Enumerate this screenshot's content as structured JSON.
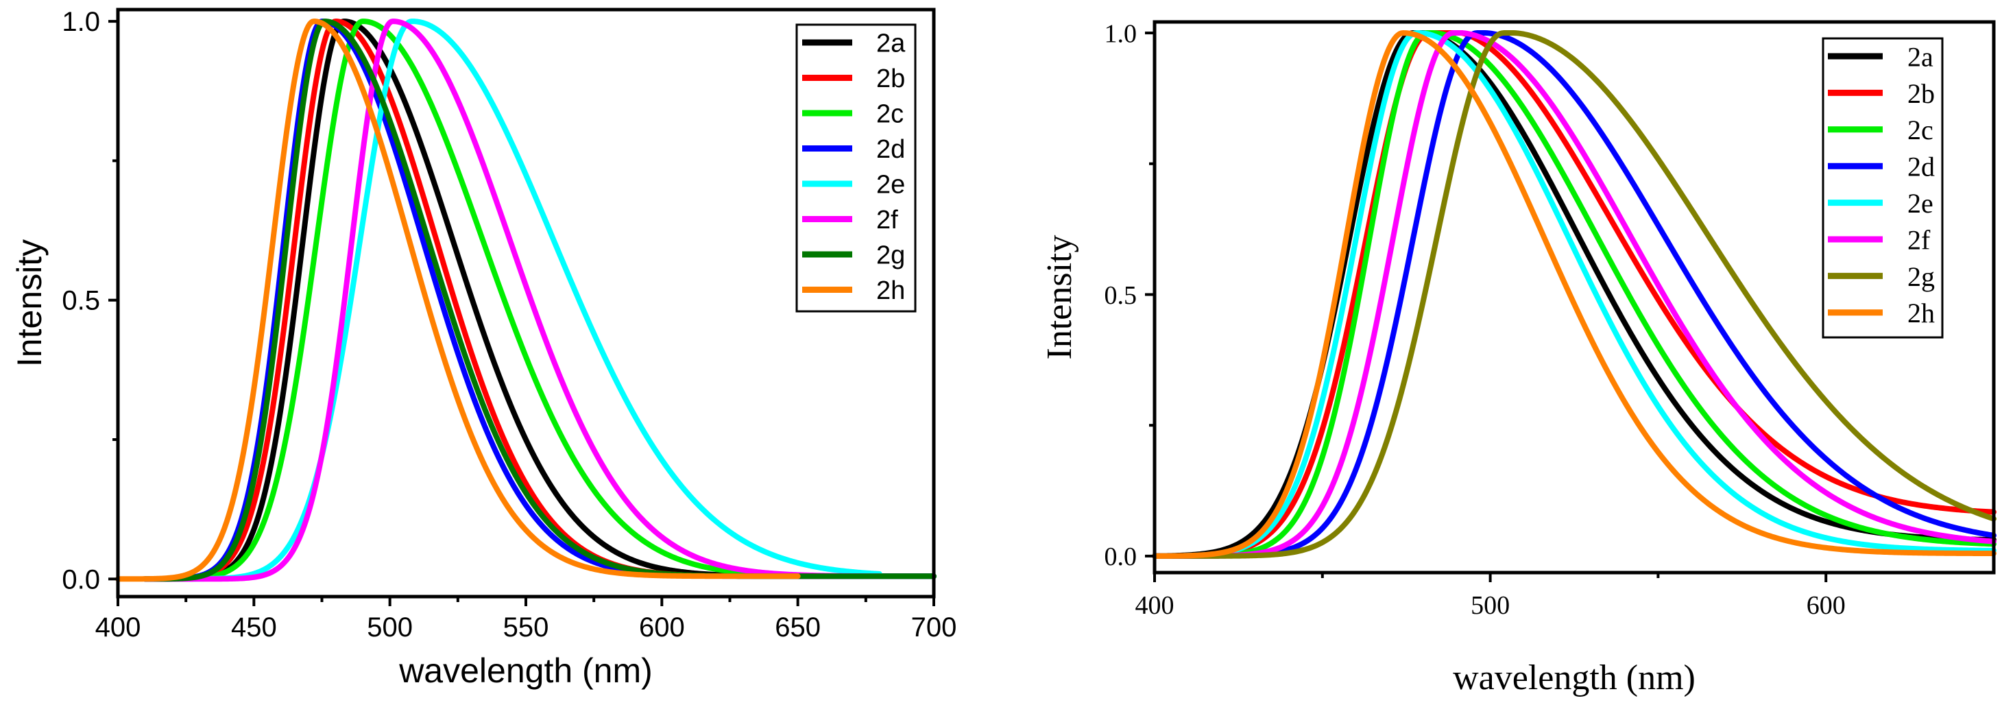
{
  "chart_data": [
    {
      "type": "line",
      "font": "sans",
      "title": "",
      "xlabel": "wavelength (nm)",
      "ylabel": "Intensity",
      "xlim": [
        400,
        700
      ],
      "ylim": [
        0.0,
        1.0
      ],
      "xticks": [
        400,
        450,
        500,
        550,
        600,
        650,
        700
      ],
      "xtick_labels": [
        "400",
        "450",
        "500",
        "550",
        "600",
        "650",
        "700"
      ],
      "yticks": [
        0.0,
        0.5,
        1.0
      ],
      "ytick_labels": [
        "0.0",
        "0.5",
        "1.0"
      ],
      "legend_position": "top-right",
      "series": [
        {
          "name": "2a",
          "color": "#000000",
          "peak": 483,
          "sigma_left": 15,
          "sigma_right": 40,
          "tail": 0.005,
          "x_start": 410,
          "x_end": 700
        },
        {
          "name": "2b",
          "color": "#ff0000",
          "peak": 480,
          "sigma_left": 15,
          "sigma_right": 37,
          "tail": 0.005,
          "x_start": 410,
          "x_end": 700
        },
        {
          "name": "2c",
          "color": "#00ee00",
          "peak": 490,
          "sigma_left": 17,
          "sigma_right": 44,
          "tail": 0.005,
          "x_start": 410,
          "x_end": 700
        },
        {
          "name": "2d",
          "color": "#0000ff",
          "peak": 475,
          "sigma_left": 14,
          "sigma_right": 37,
          "tail": 0.005,
          "x_start": 410,
          "x_end": 700
        },
        {
          "name": "2e",
          "color": "#00ffff",
          "peak": 508,
          "sigma_left": 19,
          "sigma_right": 52,
          "tail": 0.005,
          "x_start": 410,
          "x_end": 680
        },
        {
          "name": "2f",
          "color": "#ff00ff",
          "peak": 501,
          "sigma_left": 15,
          "sigma_right": 43,
          "tail": 0.005,
          "x_start": 410,
          "x_end": 680
        },
        {
          "name": "2g",
          "color": "#007700",
          "peak": 476,
          "sigma_left": 14,
          "sigma_right": 38,
          "tail": 0.005,
          "x_start": 410,
          "x_end": 700
        },
        {
          "name": "2h",
          "color": "#ff8000",
          "peak": 472,
          "sigma_left": 15,
          "sigma_right": 35,
          "tail": 0.005,
          "x_start": 400,
          "x_end": 650
        }
      ]
    },
    {
      "type": "line",
      "font": "serif",
      "title": "",
      "xlabel": "wavelength (nm)",
      "ylabel": "Intensity",
      "xlim": [
        400,
        650
      ],
      "ylim": [
        0.0,
        1.0
      ],
      "xticks": [
        400,
        500,
        600
      ],
      "xtick_labels": [
        "400",
        "500",
        "600"
      ],
      "yticks": [
        0.0,
        0.5,
        1.0
      ],
      "ytick_labels": [
        "0.0",
        "0.5",
        "1.0"
      ],
      "legend_position": "top-right",
      "series": [
        {
          "name": "2a",
          "color": "#000000",
          "peak": 477,
          "sigma_left": 19,
          "sigma_right": 48,
          "tail": 0.03,
          "x_start": 400,
          "x_end": 650
        },
        {
          "name": "2b",
          "color": "#ff0000",
          "peak": 482,
          "sigma_left": 19,
          "sigma_right": 52,
          "tail": 0.08,
          "x_start": 400,
          "x_end": 650
        },
        {
          "name": "2c",
          "color": "#00ee00",
          "peak": 481,
          "sigma_left": 17,
          "sigma_right": 50,
          "tail": 0.02,
          "x_start": 400,
          "x_end": 650
        },
        {
          "name": "2d",
          "color": "#0000ff",
          "peak": 496,
          "sigma_left": 19,
          "sigma_right": 55,
          "tail": 0.02,
          "x_start": 400,
          "x_end": 650
        },
        {
          "name": "2e",
          "color": "#00ffff",
          "peak": 478,
          "sigma_left": 18,
          "sigma_right": 45,
          "tail": 0.01,
          "x_start": 400,
          "x_end": 650
        },
        {
          "name": "2f",
          "color": "#ff00ff",
          "peak": 489,
          "sigma_left": 18,
          "sigma_right": 52,
          "tail": 0.02,
          "x_start": 400,
          "x_end": 650
        },
        {
          "name": "2g",
          "color": "#808000",
          "peak": 504,
          "sigma_left": 20,
          "sigma_right": 60,
          "tail": 0.02,
          "x_start": 400,
          "x_end": 650
        },
        {
          "name": "2h",
          "color": "#ff8000",
          "peak": 474,
          "sigma_left": 17,
          "sigma_right": 42,
          "tail": 0.005,
          "x_start": 400,
          "x_end": 650
        }
      ]
    }
  ]
}
